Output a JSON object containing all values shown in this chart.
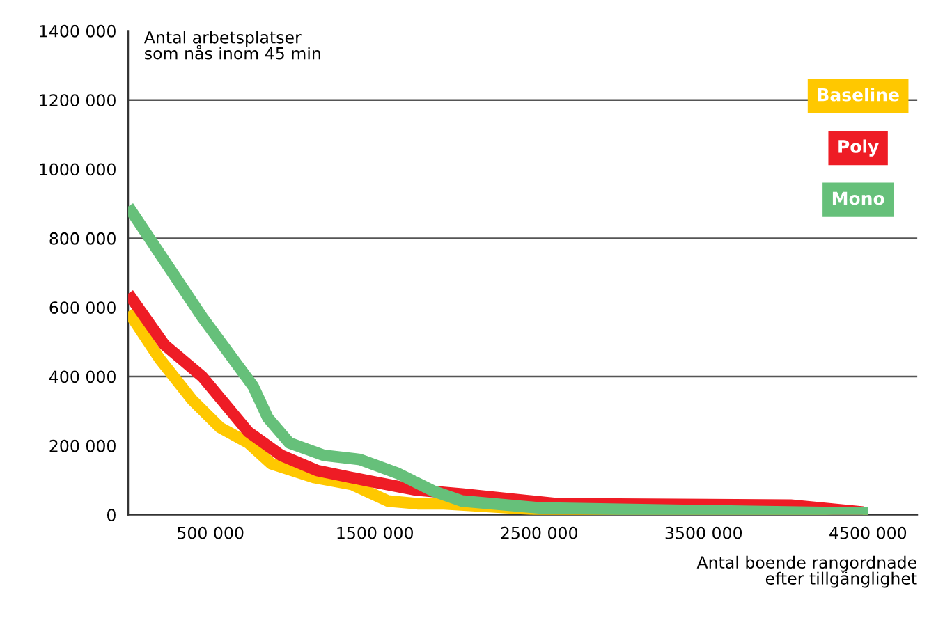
{
  "chart_data": {
    "type": "line",
    "ylabel": "Antal arbetsplatser\nsom nås inom 45 min",
    "xlabel": "Antal boende rangordnade\nefter tillgänglighet",
    "series": [
      {
        "name": "Baseline",
        "color": "#ffc800",
        "x": [
          0,
          190000,
          390000,
          560000,
          730000,
          870000,
          1130000,
          1360000,
          1580000,
          1760000,
          1920000,
          2610000,
          3500000,
          4500000
        ],
        "values": [
          588000,
          452000,
          332000,
          252000,
          208000,
          148000,
          108000,
          88000,
          40000,
          32000,
          32000,
          12000,
          8000,
          4000
        ]
      },
      {
        "name": "Poly",
        "color": "#ee1c25",
        "x": [
          0,
          220000,
          450000,
          590000,
          730000,
          930000,
          1150000,
          1440000,
          1750000,
          2030000,
          2610000,
          4030000,
          4470000
        ],
        "values": [
          640000,
          492000,
          400000,
          320000,
          240000,
          172000,
          128000,
          100000,
          72000,
          60000,
          32000,
          28000,
          8000
        ]
      },
      {
        "name": "Mono",
        "color": "#66c07a",
        "x": [
          0,
          450000,
          760000,
          850000,
          980000,
          1190000,
          1410000,
          1640000,
          1860000,
          2030000,
          2500000,
          3500000,
          4500000
        ],
        "values": [
          892000,
          572000,
          372000,
          280000,
          208000,
          172000,
          160000,
          120000,
          68000,
          40000,
          20000,
          12000,
          5000
        ]
      }
    ],
    "xlim": [
      0,
      4800000
    ],
    "xticks": [
      {
        "value": 500000,
        "label": "500 000"
      },
      {
        "value": 1500000,
        "label": "1500 000"
      },
      {
        "value": 2500000,
        "label": "2500 000"
      },
      {
        "value": 3500000,
        "label": "3500 000"
      },
      {
        "value": 4500000,
        "label": "4500 000"
      }
    ],
    "ylim": [
      0,
      1400000
    ],
    "yticks": [
      {
        "value": 0,
        "label": "0"
      },
      {
        "value": 200000,
        "label": "200 000"
      },
      {
        "value": 400000,
        "label": "400 000"
      },
      {
        "value": 600000,
        "label": "600 000"
      },
      {
        "value": 800000,
        "label": "800 000"
      },
      {
        "value": 1000000,
        "label": "1000 000"
      },
      {
        "value": 1200000,
        "label": "1200 000"
      },
      {
        "value": 1400000,
        "label": "1400 000"
      }
    ],
    "ref_lines": [
      {
        "axis": "y",
        "value": 400000,
        "color": "#555555"
      },
      {
        "axis": "y",
        "value": 800000,
        "color": "#555555"
      },
      {
        "axis": "y",
        "value": 1200000,
        "color": "#555555"
      }
    ],
    "legend": "top right",
    "marker": "none",
    "line_style": "solid",
    "grid": false
  }
}
